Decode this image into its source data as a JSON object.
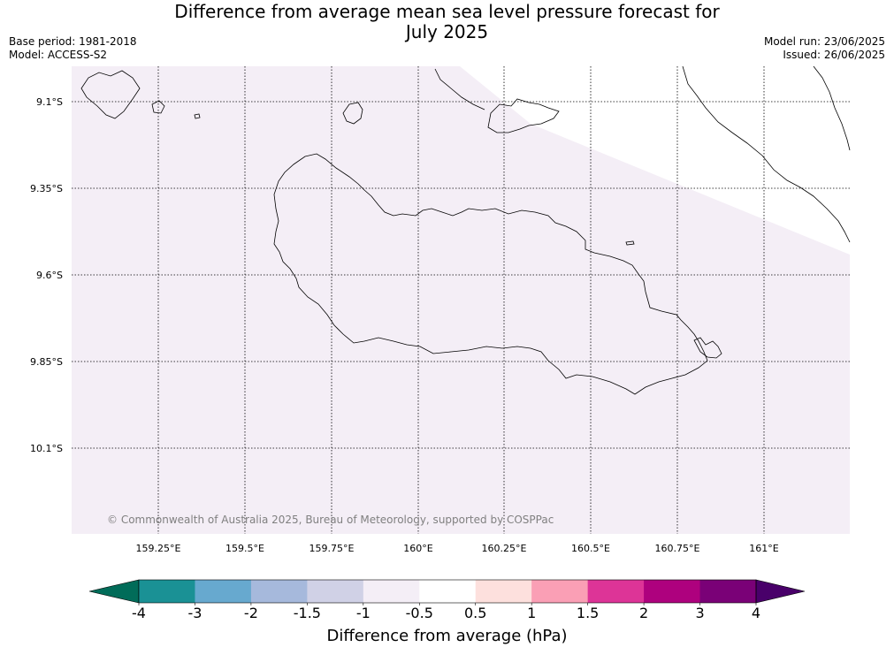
{
  "title_line1": "Difference from average mean sea level pressure forecast for",
  "title_line2": "July 2025",
  "base_period": "Base period: 1981-2018",
  "model": "Model: ACCESS-S2",
  "model_run": "Model run: 23/06/2025",
  "issued": "Issued: 26/06/2025",
  "copyright": "© Commonwealth of Australia 2025, Bureau of Meteorology, supported by COSPPac",
  "map": {
    "background_color": "#f4eef6",
    "lat_labels": [
      "9.1°S",
      "9.35°S",
      "9.6°S",
      "9.85°S",
      "10.1°S"
    ],
    "lon_labels": [
      "159.25°E",
      "159.5°E",
      "159.75°E",
      "160°E",
      "160.25°E",
      "160.5°E",
      "160.75°E",
      "161°E"
    ]
  },
  "colorbar": {
    "title": "Difference from average (hPa)",
    "ticks": [
      "-4",
      "-3",
      "-2",
      "-1.5",
      "-1",
      "-0.5",
      "0.5",
      "1",
      "1.5",
      "2",
      "3",
      "4"
    ],
    "colors": [
      "#1a9195",
      "#67a9cf",
      "#a6b9dc",
      "#d0d1e6",
      "#f4eef6",
      "#ffffff",
      "#fde0dd",
      "#fa9fb5",
      "#dd3497",
      "#ae017e",
      "#7a0177"
    ],
    "under_color": "#016c59",
    "over_color": "#49006a"
  }
}
